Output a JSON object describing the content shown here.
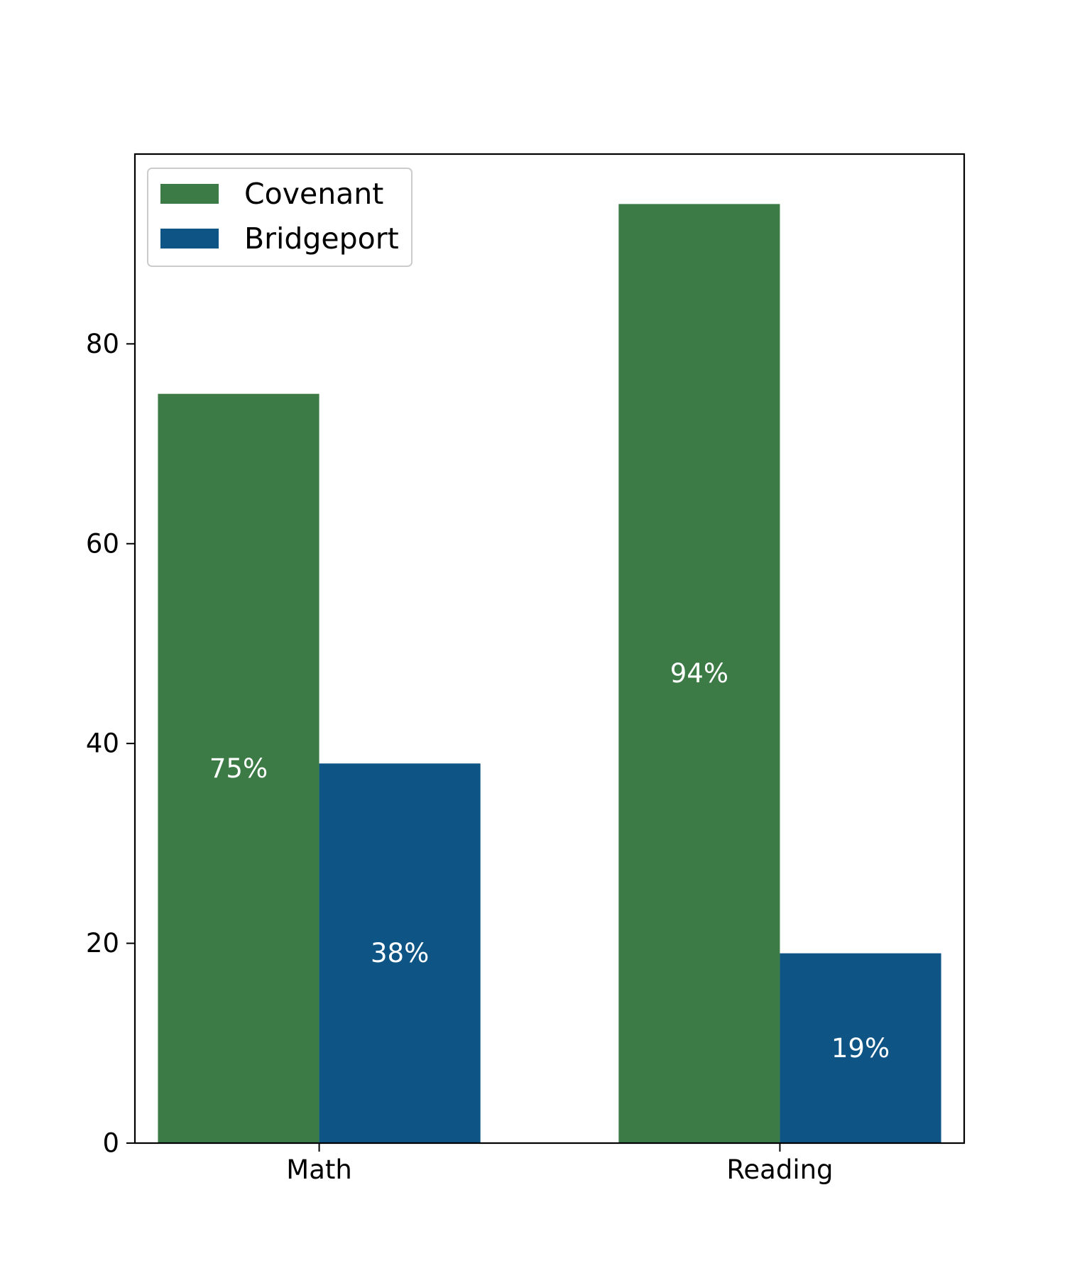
{
  "chart_data": {
    "type": "bar",
    "categories": [
      "Math",
      "Reading"
    ],
    "series": [
      {
        "name": "Covenant",
        "values": [
          75,
          94
        ],
        "color": "#3c7a46",
        "labels": [
          "75%",
          "94%"
        ]
      },
      {
        "name": "Bridgeport",
        "values": [
          38,
          19
        ],
        "color": "#0e5586",
        "labels": [
          "38%",
          "19%"
        ]
      }
    ],
    "title": "",
    "xlabel": "",
    "ylabel": "",
    "ylim": [
      0,
      99
    ],
    "yticks": [
      0,
      20,
      40,
      60,
      80
    ],
    "grid": false,
    "legend_position": "top-left"
  }
}
